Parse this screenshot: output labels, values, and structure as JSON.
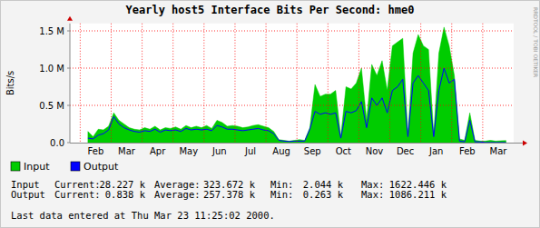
{
  "chart_data": {
    "type": "area",
    "title": "Yearly host5 Interface Bits Per Second: hme0",
    "y_label": "Bits/s",
    "side_text": "RRDTOOL / TOBI OETIKER",
    "categories": [
      null,
      null,
      null,
      null,
      null,
      "Feb",
      null,
      null,
      null,
      null,
      null,
      "Mar",
      null,
      null,
      null,
      null,
      null,
      "Apr",
      null,
      null,
      null,
      null,
      null,
      "May",
      null,
      null,
      null,
      null,
      null,
      "Jun",
      null,
      null,
      null,
      null,
      null,
      "Jul",
      null,
      null,
      null,
      null,
      null,
      "Aug",
      null,
      null,
      null,
      null,
      null,
      "Sep",
      null,
      null,
      null,
      null,
      null,
      "Oct",
      null,
      null,
      null,
      null,
      null,
      "Nov",
      null,
      null,
      null,
      null,
      null,
      "Dec",
      null,
      null,
      null,
      null,
      null,
      "Jan",
      null,
      null,
      null,
      null,
      null,
      "Feb",
      null,
      null,
      null,
      null,
      null,
      "Mar",
      null,
      null
    ],
    "series": [
      {
        "name": "Input",
        "type": "area",
        "color": "#00cc00",
        "values": [
          null,
          null,
          null,
          150000,
          80000,
          180000,
          170000,
          220000,
          400000,
          300000,
          250000,
          200000,
          180000,
          170000,
          200000,
          180000,
          220000,
          170000,
          200000,
          190000,
          210000,
          180000,
          230000,
          200000,
          220000,
          200000,
          230000,
          190000,
          300000,
          270000,
          220000,
          230000,
          220000,
          200000,
          210000,
          230000,
          240000,
          220000,
          200000,
          150000,
          40000,
          30000,
          20000,
          30000,
          40000,
          30000,
          200000,
          780000,
          620000,
          650000,
          650000,
          700000,
          80000,
          750000,
          720000,
          800000,
          1000000,
          300000,
          1050000,
          900000,
          1100000,
          700000,
          1300000,
          1350000,
          1400000,
          100000,
          1200000,
          1450000,
          1300000,
          1250000,
          100000,
          1200000,
          1550000,
          1300000,
          900000,
          50000,
          30000,
          400000,
          30000,
          20000,
          20000,
          30000,
          20000,
          25000,
          28227,
          null
        ]
      },
      {
        "name": "Output",
        "type": "line",
        "color": "#0000ff",
        "values": [
          null,
          null,
          null,
          60000,
          50000,
          100000,
          120000,
          170000,
          350000,
          250000,
          200000,
          170000,
          150000,
          140000,
          160000,
          150000,
          180000,
          140000,
          170000,
          160000,
          170000,
          150000,
          190000,
          170000,
          180000,
          170000,
          180000,
          160000,
          230000,
          210000,
          180000,
          180000,
          170000,
          160000,
          170000,
          180000,
          190000,
          170000,
          160000,
          120000,
          30000,
          20000,
          15000,
          20000,
          20000,
          20000,
          180000,
          420000,
          380000,
          400000,
          380000,
          400000,
          60000,
          420000,
          400000,
          430000,
          550000,
          200000,
          600000,
          500000,
          600000,
          400000,
          700000,
          750000,
          850000,
          80000,
          800000,
          900000,
          800000,
          700000,
          80000,
          700000,
          1000000,
          800000,
          850000,
          20000,
          10000,
          300000,
          10000,
          10000,
          1000,
          1000,
          1000,
          1000,
          838,
          null
        ]
      }
    ],
    "ylim": [
      0,
      1600000
    ],
    "yticks": [
      {
        "value": 0,
        "label": "0.0"
      },
      {
        "value": 500000,
        "label": "0.5 M"
      },
      {
        "value": 1000000,
        "label": "1.0 M"
      },
      {
        "value": 1500000,
        "label": "1.5 M"
      }
    ],
    "grid": true,
    "legend": "bottom-left",
    "stats": {
      "headers": [
        "Current:",
        "Average:",
        "Min:",
        "Max:"
      ],
      "rows": [
        {
          "name": "Input",
          "values": [
            "28.227 k",
            "323.672 k",
            "2.044 k",
            "1622.446 k"
          ]
        },
        {
          "name": "Output",
          "values": [
            "0.838 k",
            "257.378 k",
            "0.263 k",
            "1086.211 k"
          ]
        }
      ]
    },
    "footer": "Last data entered at Thu Mar 23 11:25:02 2000."
  }
}
